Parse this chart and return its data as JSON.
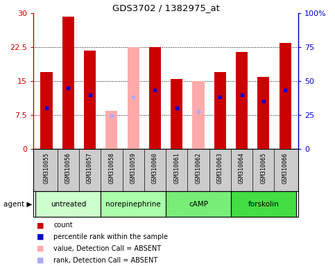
{
  "title": "GDS3702 / 1382975_at",
  "samples": [
    "GSM310055",
    "GSM310056",
    "GSM310057",
    "GSM310058",
    "GSM310059",
    "GSM310060",
    "GSM310061",
    "GSM310062",
    "GSM310063",
    "GSM310064",
    "GSM310065",
    "GSM310066"
  ],
  "count_values": [
    17.0,
    29.3,
    21.8,
    null,
    null,
    22.5,
    15.5,
    null,
    17.0,
    21.5,
    16.0,
    23.5
  ],
  "rank_values": [
    9.0,
    13.5,
    12.0,
    null,
    null,
    13.0,
    9.0,
    null,
    11.5,
    12.0,
    10.5,
    13.0
  ],
  "absent_count_values": [
    null,
    null,
    null,
    8.5,
    22.5,
    null,
    null,
    15.0,
    null,
    null,
    null,
    null
  ],
  "absent_rank_values": [
    null,
    null,
    null,
    7.3,
    11.5,
    null,
    null,
    8.3,
    null,
    null,
    null,
    null
  ],
  "groups": [
    {
      "label": "untreated",
      "indices": [
        0,
        1,
        2
      ],
      "color": "#ccffcc"
    },
    {
      "label": "norepinephrine",
      "indices": [
        3,
        4,
        5
      ],
      "color": "#aaffaa"
    },
    {
      "label": "cAMP",
      "indices": [
        6,
        7,
        8
      ],
      "color": "#77ee77"
    },
    {
      "label": "forskolin",
      "indices": [
        9,
        10,
        11
      ],
      "color": "#44dd44"
    }
  ],
  "ylim_left": [
    0,
    30
  ],
  "ylim_right": [
    0,
    100
  ],
  "yticks_left": [
    0,
    7.5,
    15,
    22.5,
    30
  ],
  "yticks_right": [
    0,
    25,
    50,
    75,
    100
  ],
  "count_color": "#cc0000",
  "absent_count_color": "#ffaaaa",
  "rank_color": "#0000cc",
  "absent_rank_color": "#aaaaff",
  "bg_color": "#ffffff",
  "sample_bg_color": "#cccccc",
  "legend_items": [
    {
      "color": "#cc0000",
      "label": "count"
    },
    {
      "color": "#0000cc",
      "label": "percentile rank within the sample"
    },
    {
      "color": "#ffaaaa",
      "label": "value, Detection Call = ABSENT"
    },
    {
      "color": "#aaaaff",
      "label": "rank, Detection Call = ABSENT"
    }
  ]
}
